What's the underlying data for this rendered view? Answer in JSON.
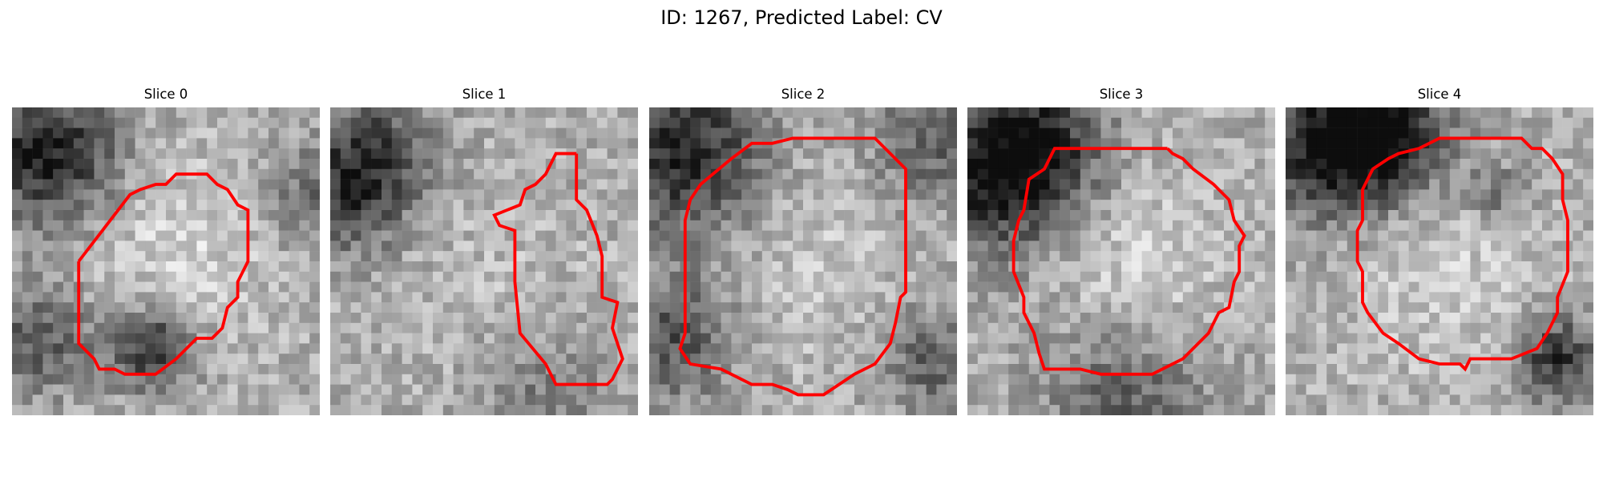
{
  "figure": {
    "title": "ID: 1267, Predicted Label: CV"
  },
  "panels": [
    {
      "title": "Slice 0"
    },
    {
      "title": "Slice 1"
    },
    {
      "title": "Slice 2"
    },
    {
      "title": "Slice 3"
    },
    {
      "title": "Slice 4"
    }
  ],
  "style": {
    "contour_color": "#ff0000",
    "colormap": "grayscale"
  }
}
